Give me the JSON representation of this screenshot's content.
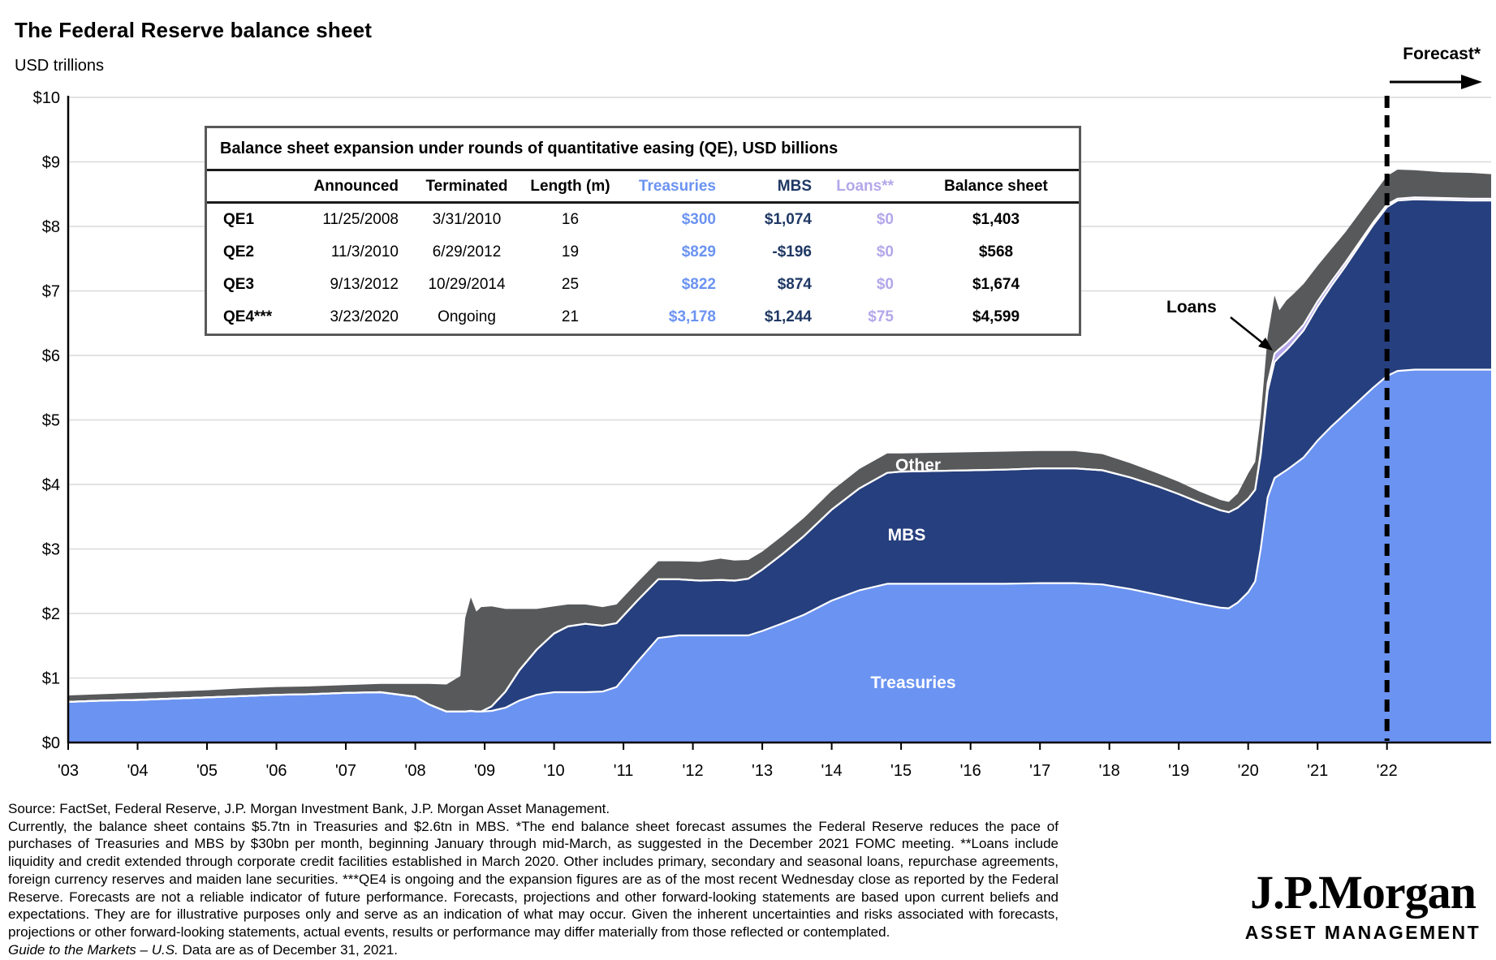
{
  "header": {
    "title": "The Federal Reserve balance sheet",
    "subtitle": "USD trillions"
  },
  "labels": {
    "forecast": "Forecast*",
    "loans": "Loans",
    "other": "Other",
    "mbs": "MBS",
    "treasuries": "Treasuries"
  },
  "colors": {
    "treasuries": "#6B93F1",
    "mbs": "#263F7E",
    "loans": "#B4A7EA",
    "other": "#58595B",
    "gridline": "#D9D9D9",
    "axis": "#000000",
    "boundary_stroke": "#FFFFFF",
    "table_treasuries_text": "#6B93F1",
    "table_mbs_text": "#1F3864",
    "table_loans_text": "#B4A7EA"
  },
  "table": {
    "title": "Balance sheet expansion under rounds of quantitative easing (QE), USD billions",
    "columns": [
      "",
      "Announced",
      "Terminated",
      "Length (m)",
      "Treasuries",
      "MBS",
      "Loans**",
      "Balance sheet"
    ],
    "rows": [
      [
        "QE1",
        "11/25/2008",
        "3/31/2010",
        "16",
        "$300",
        "$1,074",
        "$0",
        "$1,403"
      ],
      [
        "QE2",
        "11/3/2010",
        "6/29/2012",
        "19",
        "$829",
        "-$196",
        "$0",
        "$568"
      ],
      [
        "QE3",
        "9/13/2012",
        "10/29/2014",
        "25",
        "$822",
        "$874",
        "$0",
        "$1,674"
      ],
      [
        "QE4***",
        "3/23/2020",
        "Ongoing",
        "21",
        "$3,178",
        "$1,244",
        "$75",
        "$4,599"
      ]
    ]
  },
  "chart_data": {
    "type": "area",
    "title": "The Federal Reserve balance sheet",
    "ylabel": "USD trillions",
    "ylim": [
      0,
      10
    ],
    "grid": true,
    "legend_position": "in-plot labels",
    "y_tick_labels": [
      "$0",
      "$1",
      "$2",
      "$3",
      "$4",
      "$5",
      "$6",
      "$7",
      "$8",
      "$9",
      "$10"
    ],
    "x_tick_years": [
      2003,
      2004,
      2005,
      2006,
      2007,
      2008,
      2009,
      2010,
      2011,
      2012,
      2013,
      2014,
      2015,
      2016,
      2017,
      2018,
      2019,
      2020,
      2021,
      2022
    ],
    "x_tick_labels": [
      "'03",
      "'04",
      "'05",
      "'06",
      "'07",
      "'08",
      "'09",
      "'10",
      "'11",
      "'12",
      "'13",
      "'14",
      "'15",
      "'16",
      "'17",
      "'18",
      "'19",
      "'20",
      "'21",
      "'22"
    ],
    "x_range": [
      2003.0,
      2023.5
    ],
    "forecast_start": 2022.0,
    "x": [
      2003.0,
      2003.5,
      2004.0,
      2004.5,
      2005.0,
      2005.5,
      2006.0,
      2006.5,
      2007.0,
      2007.5,
      2008.0,
      2008.2,
      2008.45,
      2008.65,
      2008.72,
      2008.8,
      2008.88,
      2008.95,
      2009.1,
      2009.3,
      2009.5,
      2009.75,
      2010.0,
      2010.2,
      2010.45,
      2010.7,
      2010.9,
      2011.2,
      2011.5,
      2011.8,
      2012.1,
      2012.4,
      2012.6,
      2012.8,
      2013.0,
      2013.3,
      2013.6,
      2014.0,
      2014.4,
      2014.8,
      2015.0,
      2015.5,
      2016.0,
      2016.5,
      2017.0,
      2017.5,
      2017.9,
      2018.3,
      2018.7,
      2019.0,
      2019.3,
      2019.6,
      2019.72,
      2019.85,
      2020.0,
      2020.1,
      2020.18,
      2020.28,
      2020.38,
      2020.45,
      2020.55,
      2020.65,
      2020.8,
      2021.0,
      2021.2,
      2021.4,
      2021.6,
      2021.8,
      2022.0,
      2022.15,
      2022.4,
      2022.8,
      2023.2,
      2023.5
    ],
    "series": [
      {
        "name": "Treasuries",
        "color": "#6B93F1",
        "values": [
          0.63,
          0.65,
          0.66,
          0.68,
          0.7,
          0.72,
          0.74,
          0.75,
          0.77,
          0.78,
          0.71,
          0.59,
          0.48,
          0.48,
          0.48,
          0.49,
          0.48,
          0.48,
          0.49,
          0.54,
          0.65,
          0.74,
          0.78,
          0.78,
          0.78,
          0.79,
          0.86,
          1.25,
          1.62,
          1.66,
          1.66,
          1.66,
          1.66,
          1.66,
          1.73,
          1.85,
          1.98,
          2.2,
          2.36,
          2.46,
          2.46,
          2.46,
          2.46,
          2.46,
          2.47,
          2.47,
          2.45,
          2.38,
          2.29,
          2.22,
          2.15,
          2.09,
          2.08,
          2.17,
          2.33,
          2.5,
          3.0,
          3.8,
          4.1,
          4.15,
          4.22,
          4.3,
          4.42,
          4.68,
          4.9,
          5.1,
          5.3,
          5.5,
          5.68,
          5.76,
          5.78,
          5.78,
          5.78,
          5.78
        ]
      },
      {
        "name": "MBS",
        "color": "#263F7E",
        "values": [
          0,
          0,
          0,
          0,
          0,
          0,
          0,
          0,
          0,
          0,
          0,
          0,
          0,
          0,
          0,
          0,
          0,
          0,
          0.07,
          0.25,
          0.47,
          0.7,
          0.91,
          1.02,
          1.06,
          1.02,
          0.99,
          0.95,
          0.91,
          0.87,
          0.85,
          0.86,
          0.85,
          0.88,
          0.95,
          1.08,
          1.22,
          1.41,
          1.58,
          1.72,
          1.74,
          1.75,
          1.76,
          1.77,
          1.78,
          1.78,
          1.77,
          1.73,
          1.68,
          1.63,
          1.57,
          1.51,
          1.49,
          1.47,
          1.45,
          1.42,
          1.45,
          1.65,
          1.8,
          1.83,
          1.86,
          1.9,
          1.97,
          2.08,
          2.18,
          2.28,
          2.4,
          2.52,
          2.62,
          2.64,
          2.64,
          2.63,
          2.62,
          2.62
        ]
      },
      {
        "name": "Loans",
        "color": "#B4A7EA",
        "values": [
          0,
          0,
          0,
          0,
          0,
          0,
          0,
          0,
          0,
          0,
          0,
          0,
          0,
          0,
          0,
          0,
          0,
          0,
          0,
          0,
          0,
          0,
          0,
          0,
          0,
          0,
          0,
          0,
          0,
          0,
          0,
          0,
          0,
          0,
          0,
          0,
          0,
          0,
          0,
          0,
          0,
          0,
          0,
          0,
          0,
          0,
          0,
          0,
          0,
          0,
          0,
          0,
          0,
          0,
          0,
          0,
          0.04,
          0.12,
          0.13,
          0.12,
          0.11,
          0.1,
          0.09,
          0.08,
          0.07,
          0.06,
          0.05,
          0.04,
          0.04,
          0.03,
          0.03,
          0.03,
          0.03,
          0.03
        ]
      },
      {
        "name": "Other",
        "color": "#58595B",
        "values": [
          0.1,
          0.1,
          0.11,
          0.11,
          0.11,
          0.12,
          0.12,
          0.12,
          0.12,
          0.13,
          0.2,
          0.32,
          0.42,
          0.55,
          1.45,
          1.76,
          1.55,
          1.62,
          1.55,
          1.28,
          0.95,
          0.63,
          0.42,
          0.34,
          0.3,
          0.29,
          0.29,
          0.28,
          0.28,
          0.28,
          0.29,
          0.33,
          0.31,
          0.29,
          0.28,
          0.28,
          0.28,
          0.29,
          0.3,
          0.3,
          0.28,
          0.28,
          0.28,
          0.28,
          0.27,
          0.27,
          0.25,
          0.22,
          0.2,
          0.19,
          0.17,
          0.16,
          0.16,
          0.22,
          0.39,
          0.43,
          0.55,
          0.73,
          0.9,
          0.6,
          0.66,
          0.65,
          0.63,
          0.55,
          0.5,
          0.47,
          0.45,
          0.43,
          0.44,
          0.45,
          0.42,
          0.4,
          0.4,
          0.38
        ]
      }
    ]
  },
  "footnotes": {
    "source": "Source: FactSet, Federal Reserve, J.P. Morgan Investment Bank, J.P. Morgan Asset Management.",
    "body": "Currently, the balance sheet contains $5.7tn in Treasuries and $2.6tn in MBS. *The end balance sheet forecast assumes the Federal Reserve reduces the pace of purchases of Treasuries and MBS by $30bn per month, beginning January through mid-March, as suggested in the December 2021 FOMC meeting. **Loans include liquidity and credit extended through corporate credit facilities established in March 2020. Other includes primary, secondary and seasonal loans, repurchase agreements, foreign currency reserves and maiden lane securities. ***QE4 is ongoing and the expansion figures are as of the most recent Wednesday close as reported by the Federal Reserve. Forecasts are not a reliable indicator of future performance. Forecasts, projections and other forward-looking statements are based upon current beliefs and expectations. They are for illustrative purposes only and serve as an indication of what may occur. Given the inherent uncertainties and risks associated with forecasts, projections or other forward-looking statements, actual events, results or performance may differ materially from those reflected or contemplated.",
    "gtm": "Guide to the Markets – U.S.",
    "asof": " Data are as of December 31, 2021."
  },
  "logo": {
    "name": "J.P.Morgan",
    "division": "ASSET MANAGEMENT"
  }
}
